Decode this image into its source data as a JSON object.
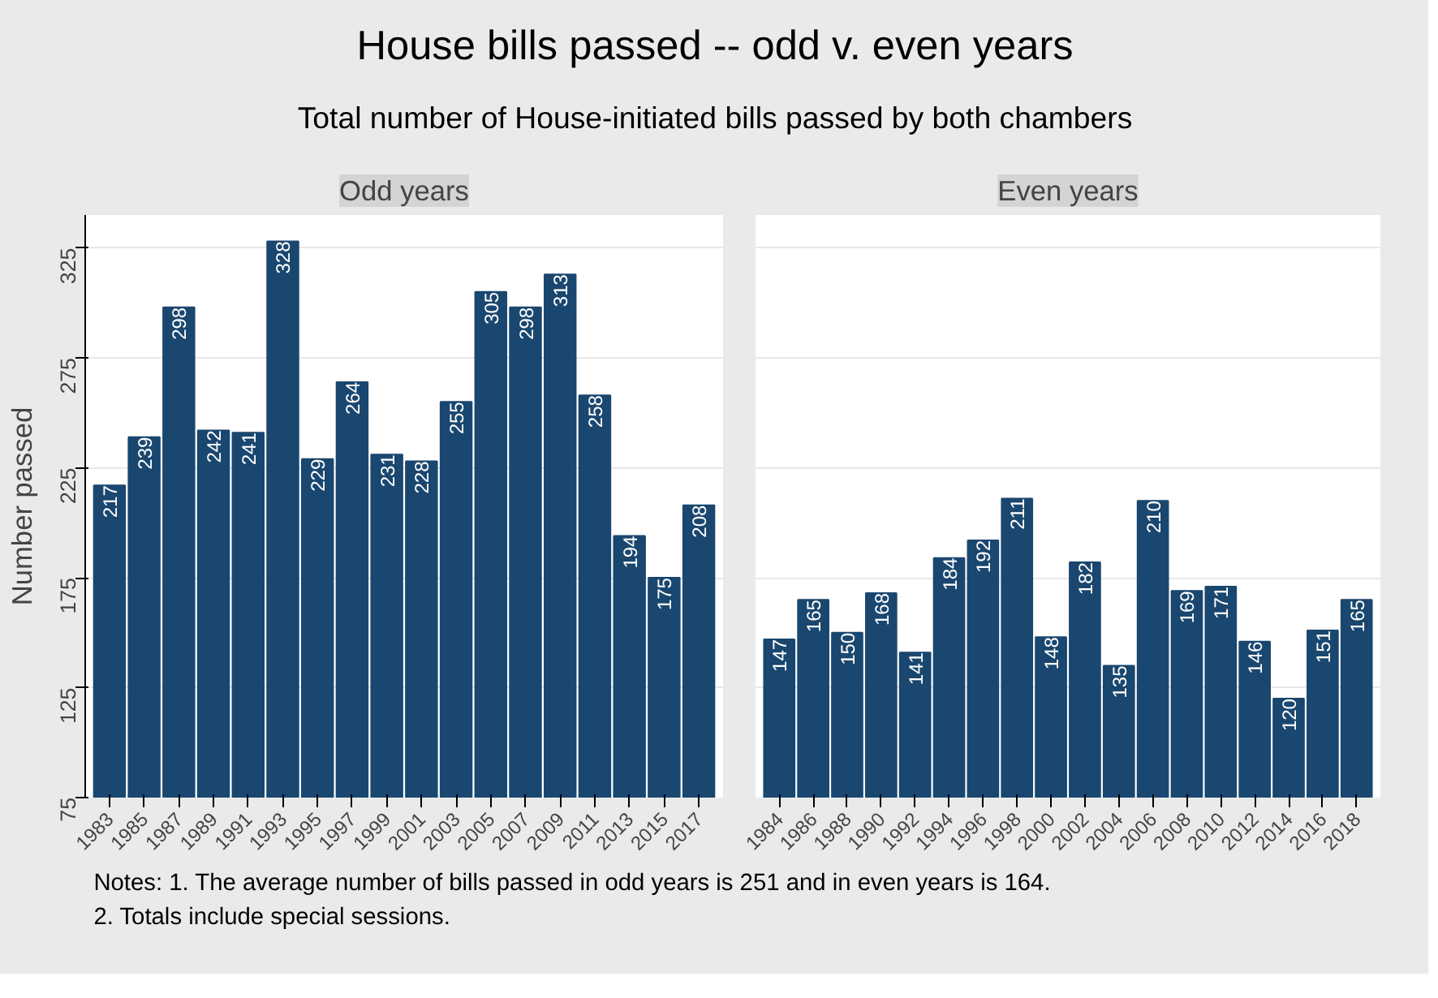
{
  "chart_data": [
    {
      "type": "other",
      "title": "House bills passed -- odd v. even years",
      "subtitle": "Total number of House-initiated bills passed by both chambers"
    },
    {
      "type": "bar",
      "title": "Odd years",
      "ylabel": "Number passed",
      "categories": [
        "1983",
        "1985",
        "1987",
        "1989",
        "1991",
        "1993",
        "1995",
        "1997",
        "1999",
        "2001",
        "2003",
        "2005",
        "2007",
        "2009",
        "2011",
        "2013",
        "2015",
        "2017"
      ],
      "values": [
        217,
        239,
        298,
        242,
        241,
        328,
        229,
        264,
        231,
        228,
        255,
        305,
        298,
        313,
        258,
        194,
        175,
        208
      ],
      "color": "#1a476f",
      "ylim": [
        75,
        340
      ],
      "yticks": [
        75,
        125,
        175,
        225,
        275,
        325
      ],
      "grid": "y",
      "data_labels": true
    },
    {
      "type": "bar",
      "title": "Even years",
      "categories": [
        "1984",
        "1986",
        "1988",
        "1990",
        "1992",
        "1994",
        "1996",
        "1998",
        "2000",
        "2002",
        "2004",
        "2006",
        "2008",
        "2010",
        "2012",
        "2014",
        "2016",
        "2018"
      ],
      "values": [
        147,
        165,
        150,
        168,
        141,
        184,
        192,
        211,
        148,
        182,
        135,
        210,
        169,
        171,
        146,
        120,
        151,
        165
      ],
      "color": "#1a476f",
      "ylim": [
        75,
        340
      ],
      "yticks": [
        75,
        125,
        175,
        225,
        275,
        325
      ],
      "grid": "y",
      "data_labels": true,
      "tick_labels": "x"
    },
    {
      "type": "other",
      "annotations": [
        "Notes: 1. The average number of bills passed in odd years is 251 and in even years is 164.",
        "2. Totals include special sessions."
      ]
    }
  ]
}
